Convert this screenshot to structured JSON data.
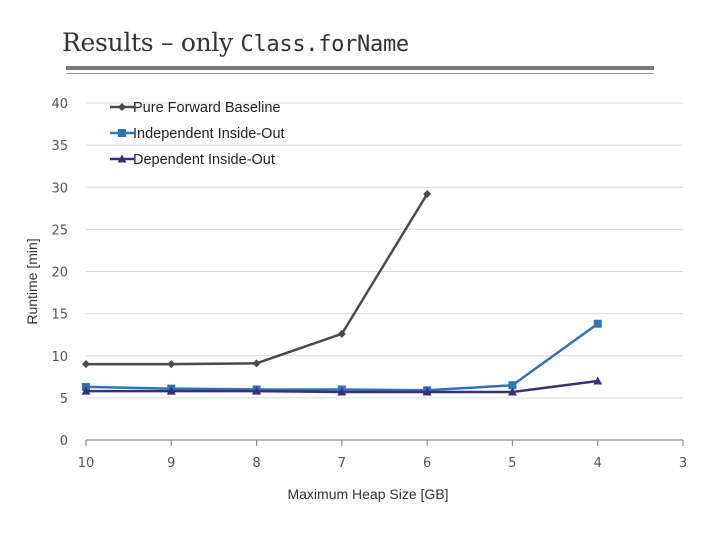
{
  "title": {
    "text": "Results – only ",
    "code": "Class.forName"
  },
  "chart_data": {
    "type": "line",
    "xlabel": "Maximum Heap Size [GB]",
    "ylabel": "Runtime [min]",
    "x_categories": [
      "10",
      "9",
      "8",
      "7",
      "6",
      "5",
      "4",
      "3"
    ],
    "y_ticks": [
      0,
      5,
      10,
      15,
      20,
      25,
      30,
      35,
      40
    ],
    "ylim": [
      0,
      40
    ],
    "grid": true,
    "legend_position": "top-left",
    "series": [
      {
        "name": "Pure Forward Baseline",
        "color": "#4a4a4a",
        "marker": "diamond",
        "x": [
          "10",
          "9",
          "8",
          "7",
          "6"
        ],
        "values": [
          9.0,
          9.0,
          9.1,
          12.6,
          29.2
        ]
      },
      {
        "name": "Independent Inside-Out",
        "color": "#2e75b6",
        "marker": "square",
        "x": [
          "10",
          "9",
          "8",
          "7",
          "6",
          "5",
          "4"
        ],
        "values": [
          6.3,
          6.1,
          6.0,
          6.0,
          5.9,
          6.5,
          13.8
        ]
      },
      {
        "name": "Dependent Inside-Out",
        "color": "#3c2f7a",
        "marker": "triangle",
        "x": [
          "10",
          "9",
          "8",
          "7",
          "6",
          "5",
          "4"
        ],
        "values": [
          5.8,
          5.8,
          5.8,
          5.7,
          5.7,
          5.7,
          7.0
        ]
      }
    ]
  }
}
